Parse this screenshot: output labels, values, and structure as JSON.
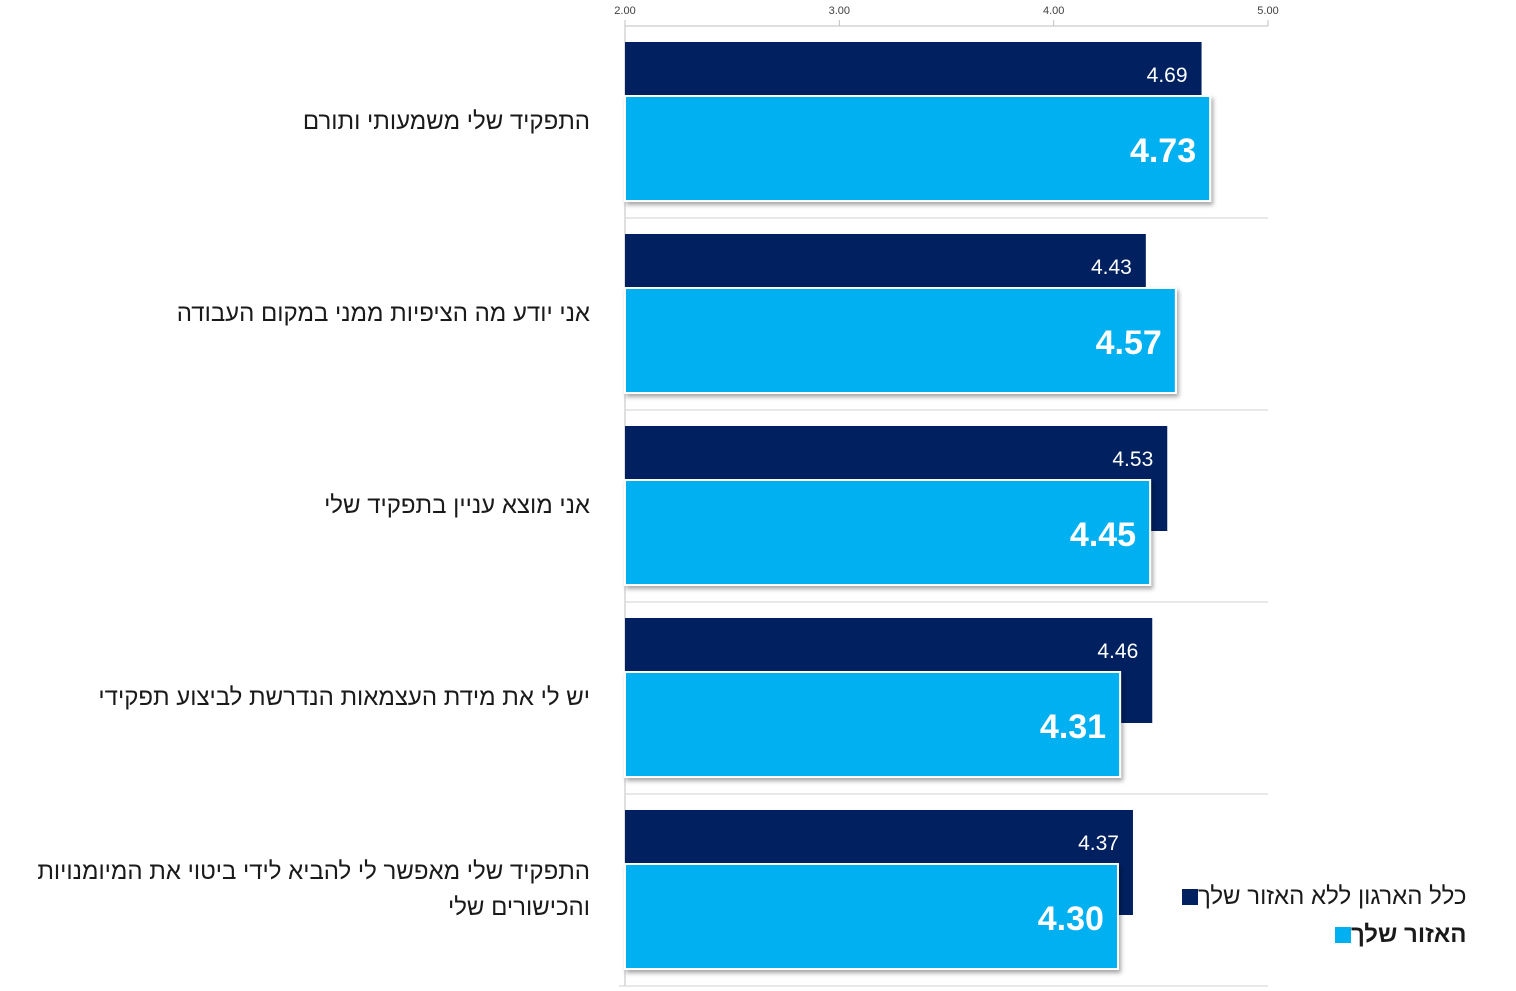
{
  "chart_data": {
    "type": "bar",
    "orientation": "horizontal",
    "xlim": [
      2.0,
      5.0
    ],
    "x_ticks": [
      "2.00",
      "3.00",
      "4.00",
      "5.00"
    ],
    "categories": [
      "התפקיד שלי משמעותי ותורם",
      "אני יודע מה הציפיות ממני במקום העבודה",
      "אני מוצא עניין בתפקיד שלי",
      "יש לי את מידת העצמאות הנדרשת לביצוע תפקידי",
      "התפקיד שלי מאפשר לי להביא לידי ביטוי את המיומנויות והכישורים שלי"
    ],
    "series": [
      {
        "name": "כלל הארגון ללא האזור שלך",
        "color": "#002060",
        "values": [
          4.69,
          4.43,
          4.53,
          4.46,
          4.37
        ],
        "labels": [
          "4.69",
          "4.43",
          "4.53",
          "4.46",
          "4.37"
        ]
      },
      {
        "name": "האזור שלך",
        "color": "#00B0F0",
        "values": [
          4.73,
          4.57,
          4.45,
          4.31,
          4.3
        ],
        "labels": [
          "4.73",
          "4.57",
          "4.45",
          "4.31",
          "4.30"
        ]
      }
    ],
    "legend_position": "bottom-right",
    "grid": false
  }
}
